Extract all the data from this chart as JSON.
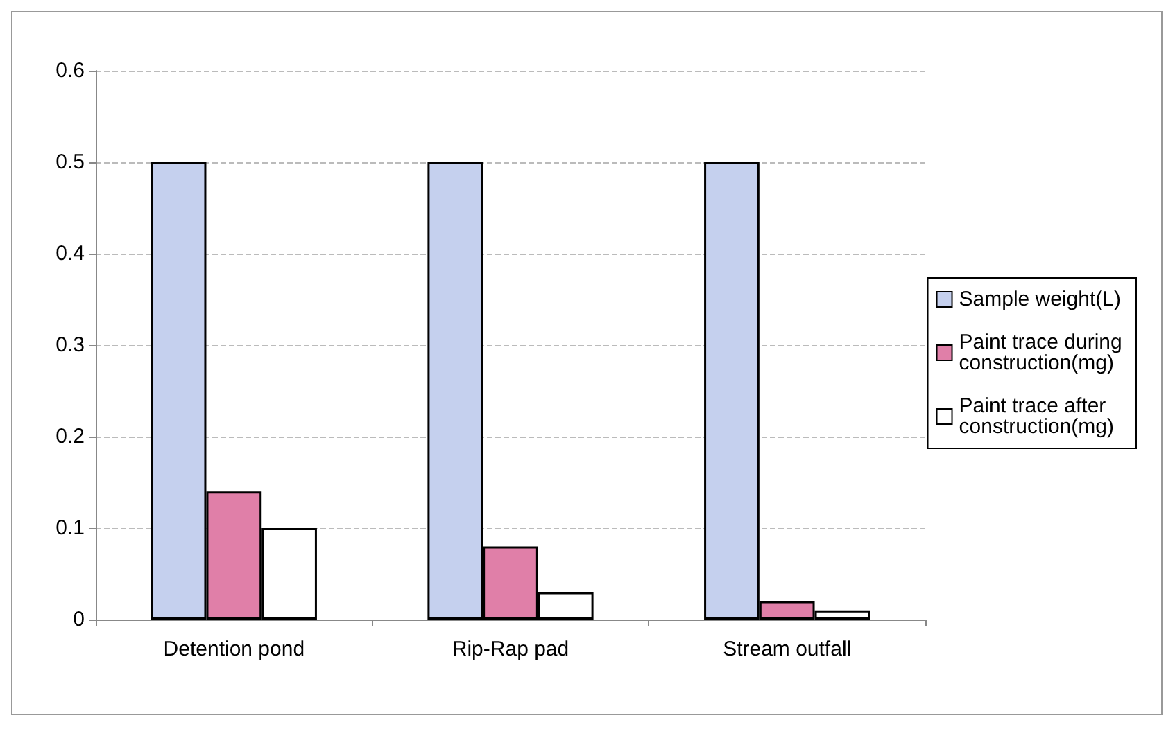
{
  "chart_data": {
    "type": "bar",
    "categories": [
      "Detention pond",
      "Rip-Rap pad",
      "Stream outfall"
    ],
    "series": [
      {
        "name": "Sample weight(L)",
        "color": "#c5d0ee",
        "values": [
          0.5,
          0.5,
          0.5
        ]
      },
      {
        "name": "Paint trace during construction(mg)",
        "color": "#e07fa8",
        "values": [
          0.14,
          0.08,
          0.02
        ]
      },
      {
        "name": "Paint trace after construction(mg)",
        "color": "#ffffff",
        "values": [
          0.1,
          0.03,
          0.01
        ]
      }
    ],
    "ylim": [
      0,
      0.6
    ],
    "yticks": [
      0,
      0.1,
      0.2,
      0.3,
      0.4,
      0.5,
      0.6
    ],
    "grid": "y",
    "legend": "right"
  }
}
